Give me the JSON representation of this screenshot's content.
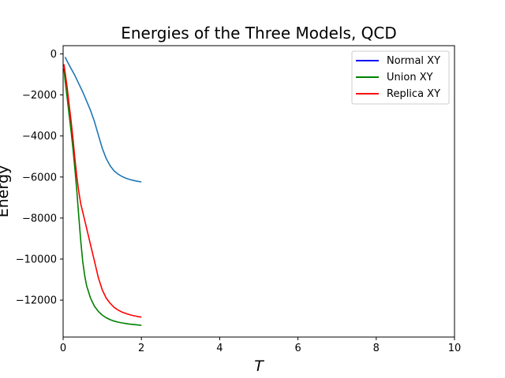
{
  "chart_data": {
    "type": "line",
    "title": "Energies of the Three Models, QCD",
    "xlabel": "T",
    "ylabel": "Energy",
    "xlim": [
      0,
      10
    ],
    "ylim": [
      -13800,
      400
    ],
    "xticks": [
      0,
      2,
      4,
      6,
      8,
      10
    ],
    "xtick_labels": [
      "0",
      "2",
      "4",
      "6",
      "8",
      "10"
    ],
    "yticks": [
      0,
      -2000,
      -4000,
      -6000,
      -8000,
      -10000,
      -12000
    ],
    "ytick_labels": [
      "0",
      "−2000",
      "−4000",
      "−6000",
      "−8000",
      "−10000",
      "−12000"
    ],
    "grid": false,
    "legend_position": "top-right",
    "legend": [
      {
        "name": "Normal XY",
        "color": "#0000ff"
      },
      {
        "name": "Union XY",
        "color": "#008000"
      },
      {
        "name": "Replica XY",
        "color": "#ff0000"
      }
    ],
    "series": [
      {
        "name": "Normal XY",
        "color": "#1f77b4",
        "x": [
          0.05,
          0.1,
          0.2,
          0.3,
          0.4,
          0.5,
          0.6,
          0.7,
          0.8,
          0.9,
          1.0,
          1.1,
          1.2,
          1.3,
          1.4,
          1.5,
          1.6,
          1.7,
          1.8,
          1.9,
          2.0
        ],
        "y": [
          -150,
          -350,
          -700,
          -1050,
          -1450,
          -1850,
          -2300,
          -2750,
          -3300,
          -3950,
          -4600,
          -5100,
          -5450,
          -5700,
          -5850,
          -5970,
          -6060,
          -6120,
          -6170,
          -6210,
          -6240
        ]
      },
      {
        "name": "Union XY",
        "color": "#008000",
        "x": [
          0.02,
          0.05,
          0.1,
          0.15,
          0.2,
          0.25,
          0.3,
          0.35,
          0.4,
          0.45,
          0.5,
          0.55,
          0.6,
          0.7,
          0.8,
          0.9,
          1.0,
          1.1,
          1.2,
          1.3,
          1.4,
          1.5,
          1.6,
          1.7,
          1.8,
          1.9,
          2.0
        ],
        "y": [
          -700,
          -1300,
          -2100,
          -2900,
          -3700,
          -4600,
          -5600,
          -6700,
          -7900,
          -9100,
          -10100,
          -10800,
          -11300,
          -11900,
          -12300,
          -12550,
          -12730,
          -12860,
          -12950,
          -13020,
          -13070,
          -13110,
          -13140,
          -13170,
          -13190,
          -13210,
          -13230
        ]
      },
      {
        "name": "Replica XY",
        "color": "#ff0000",
        "x": [
          0.02,
          0.05,
          0.1,
          0.15,
          0.2,
          0.25,
          0.3,
          0.35,
          0.4,
          0.45,
          0.5,
          0.55,
          0.6,
          0.7,
          0.8,
          0.9,
          1.0,
          1.1,
          1.2,
          1.3,
          1.4,
          1.5,
          1.6,
          1.7,
          1.8,
          1.9,
          2.0
        ],
        "y": [
          -500,
          -900,
          -1600,
          -2400,
          -3200,
          -4100,
          -5100,
          -6000,
          -6700,
          -7300,
          -7700,
          -8100,
          -8500,
          -9300,
          -10100,
          -10900,
          -11500,
          -11900,
          -12150,
          -12350,
          -12480,
          -12580,
          -12650,
          -12710,
          -12760,
          -12800,
          -12830
        ]
      }
    ]
  }
}
